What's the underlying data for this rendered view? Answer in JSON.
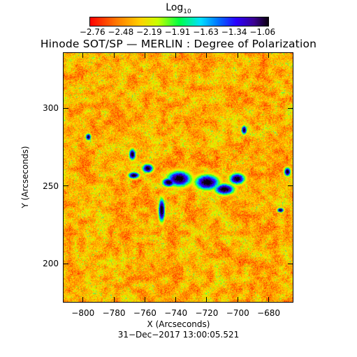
{
  "colorbar": {
    "title": "Log",
    "title_sub": "10",
    "tick_labels": "−2.76 −2.48 −2.19 −1.91 −1.63 −1.34 −1.06"
  },
  "title": "Hinode SOT/SP — MERLIN : Degree of Polarization",
  "axes": {
    "xlabel": "X (Arcseconds)",
    "ylabel": "Y (Arcseconds)",
    "x_ticks": [
      "−800",
      "−780",
      "−760",
      "−740",
      "−720",
      "−700",
      "−680"
    ],
    "y_ticks": [
      "300",
      "250",
      "200"
    ],
    "x_range": [
      -813,
      -664
    ],
    "y_range": [
      175,
      336
    ]
  },
  "timestamp": "31−Dec−2017 13:00:05.521"
}
